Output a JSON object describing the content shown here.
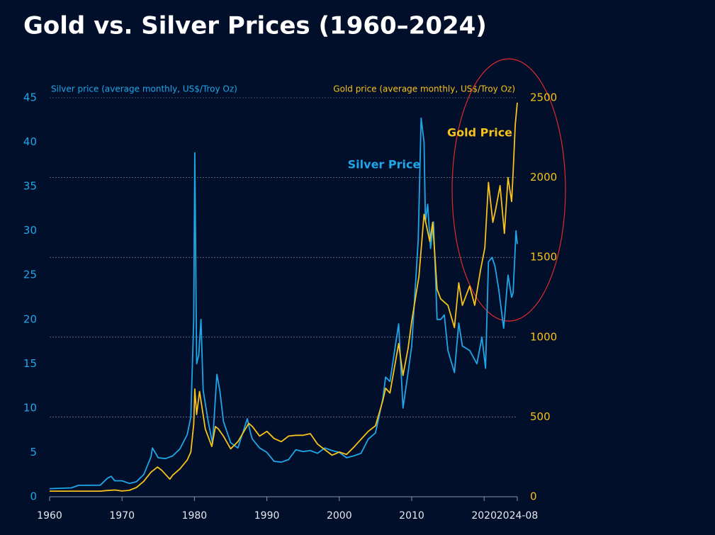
{
  "chart_data": {
    "type": "line",
    "title": "Gold vs. Silver Prices (1960–2024)",
    "y_label": "Silver price (average monthly, US$/Troy Oz)",
    "y2_label": "Gold price (average monthly, US$/Troy Oz)",
    "xlim": [
      1960,
      2024.58
    ],
    "xticks": [
      1960,
      1970,
      1980,
      1990,
      2000,
      2010,
      2020,
      {
        "value": 2024.58,
        "label": "2024-08"
      }
    ],
    "ylim": [
      0,
      45
    ],
    "yticks": [
      0,
      5,
      10,
      15,
      20,
      25,
      30,
      35,
      40,
      45
    ],
    "y2lim": [
      0,
      2500
    ],
    "y2ticks": [
      0,
      500,
      1000,
      1500,
      2000,
      2500
    ],
    "grid": true,
    "series": [
      {
        "name": "Silver Price",
        "color": "#1ea6e8",
        "x": [
          1960,
          1963,
          1964,
          1967,
          1968,
          1968.5,
          1969,
          1970,
          1971,
          1972,
          1973,
          1974,
          1974.2,
          1975,
          1976,
          1977,
          1978,
          1979,
          1979.5,
          1979.9,
          1980.05,
          1980.3,
          1980.6,
          1980.9,
          1981.2,
          1981.9,
          1982.5,
          1983.1,
          1983.5,
          1984,
          1985,
          1986,
          1987.3,
          1987.8,
          1988,
          1989,
          1990,
          1991,
          1992,
          1993,
          1994,
          1995,
          1996,
          1997,
          1998,
          1999,
          2000,
          2001,
          2002,
          2003,
          2004,
          2005,
          2006,
          2006.4,
          2007,
          2008.2,
          2008.8,
          2009.5,
          2010,
          2010.9,
          2011.3,
          2011.7,
          2011.9,
          2012.2,
          2012.6,
          2013,
          2013.5,
          2014,
          2014.5,
          2015,
          2015.9,
          2016.5,
          2017,
          2018,
          2019,
          2019.7,
          2020.2,
          2020.6,
          2021.1,
          2021.5,
          2022,
          2022.7,
          2023.3,
          2023.8,
          2024,
          2024.4,
          2024.58
        ],
        "values": [
          0.91,
          1.0,
          1.29,
          1.3,
          2.1,
          2.3,
          1.8,
          1.8,
          1.5,
          1.7,
          2.5,
          4.5,
          5.5,
          4.4,
          4.3,
          4.6,
          5.4,
          7,
          9,
          20,
          38.8,
          15,
          16,
          20,
          12,
          8.5,
          6,
          13.8,
          12,
          8.5,
          6.1,
          5.5,
          8.8,
          7,
          6.5,
          5.5,
          5,
          4,
          3.9,
          4.2,
          5.3,
          5.1,
          5.2,
          4.9,
          5.5,
          5.2,
          5,
          4.4,
          4.6,
          4.9,
          6.5,
          7.2,
          11,
          13.5,
          13,
          19.5,
          10,
          14,
          17,
          29,
          42.7,
          40,
          31,
          33,
          28,
          31,
          20,
          20,
          20.5,
          16.5,
          14,
          19.6,
          17,
          16.5,
          15,
          18,
          14.5,
          26.5,
          27,
          26,
          23.5,
          19,
          25,
          22.5,
          23,
          30,
          28.5
        ]
      },
      {
        "name": "Gold Price",
        "color": "#f7c21b",
        "axis": "y2",
        "x": [
          1960,
          1967,
          1968,
          1969,
          1970,
          1971,
          1972,
          1973,
          1974,
          1974.9,
          1975.5,
          1976.6,
          1977,
          1978,
          1979,
          1979.5,
          1979.9,
          1980.05,
          1980.3,
          1980.7,
          1981.5,
          1982.4,
          1982.9,
          1983.3,
          1984,
          1985,
          1986,
          1987.5,
          1988,
          1989,
          1990,
          1991,
          1992,
          1993,
          1994,
          1995,
          1996,
          1997,
          1998,
          1999,
          2000,
          2001,
          2002,
          2003,
          2004,
          2005,
          2006,
          2006.4,
          2007,
          2008.2,
          2008.8,
          2009.5,
          2010,
          2011,
          2011.7,
          2012.5,
          2012.9,
          2013.5,
          2014,
          2015,
          2015.9,
          2016.5,
          2017,
          2018,
          2018.7,
          2019.5,
          2020.1,
          2020.6,
          2021.2,
          2021.6,
          2022.2,
          2022.8,
          2023.3,
          2023.8,
          2024,
          2024.3,
          2024.58
        ],
        "values": [
          35,
          35,
          39,
          42,
          36,
          40,
          58,
          97,
          154,
          186,
          165,
          110,
          135,
          175,
          230,
          280,
          455,
          675,
          515,
          660,
          425,
          315,
          440,
          425,
          380,
          300,
          345,
          460,
          440,
          380,
          410,
          365,
          345,
          380,
          385,
          385,
          395,
          330,
          295,
          260,
          280,
          265,
          310,
          360,
          410,
          445,
          600,
          680,
          650,
          960,
          760,
          930,
          1100,
          1380,
          1770,
          1600,
          1720,
          1300,
          1240,
          1200,
          1060,
          1340,
          1200,
          1320,
          1200,
          1420,
          1560,
          1970,
          1720,
          1800,
          1950,
          1650,
          2000,
          1850,
          2030,
          2330,
          2470
        ]
      }
    ]
  }
}
